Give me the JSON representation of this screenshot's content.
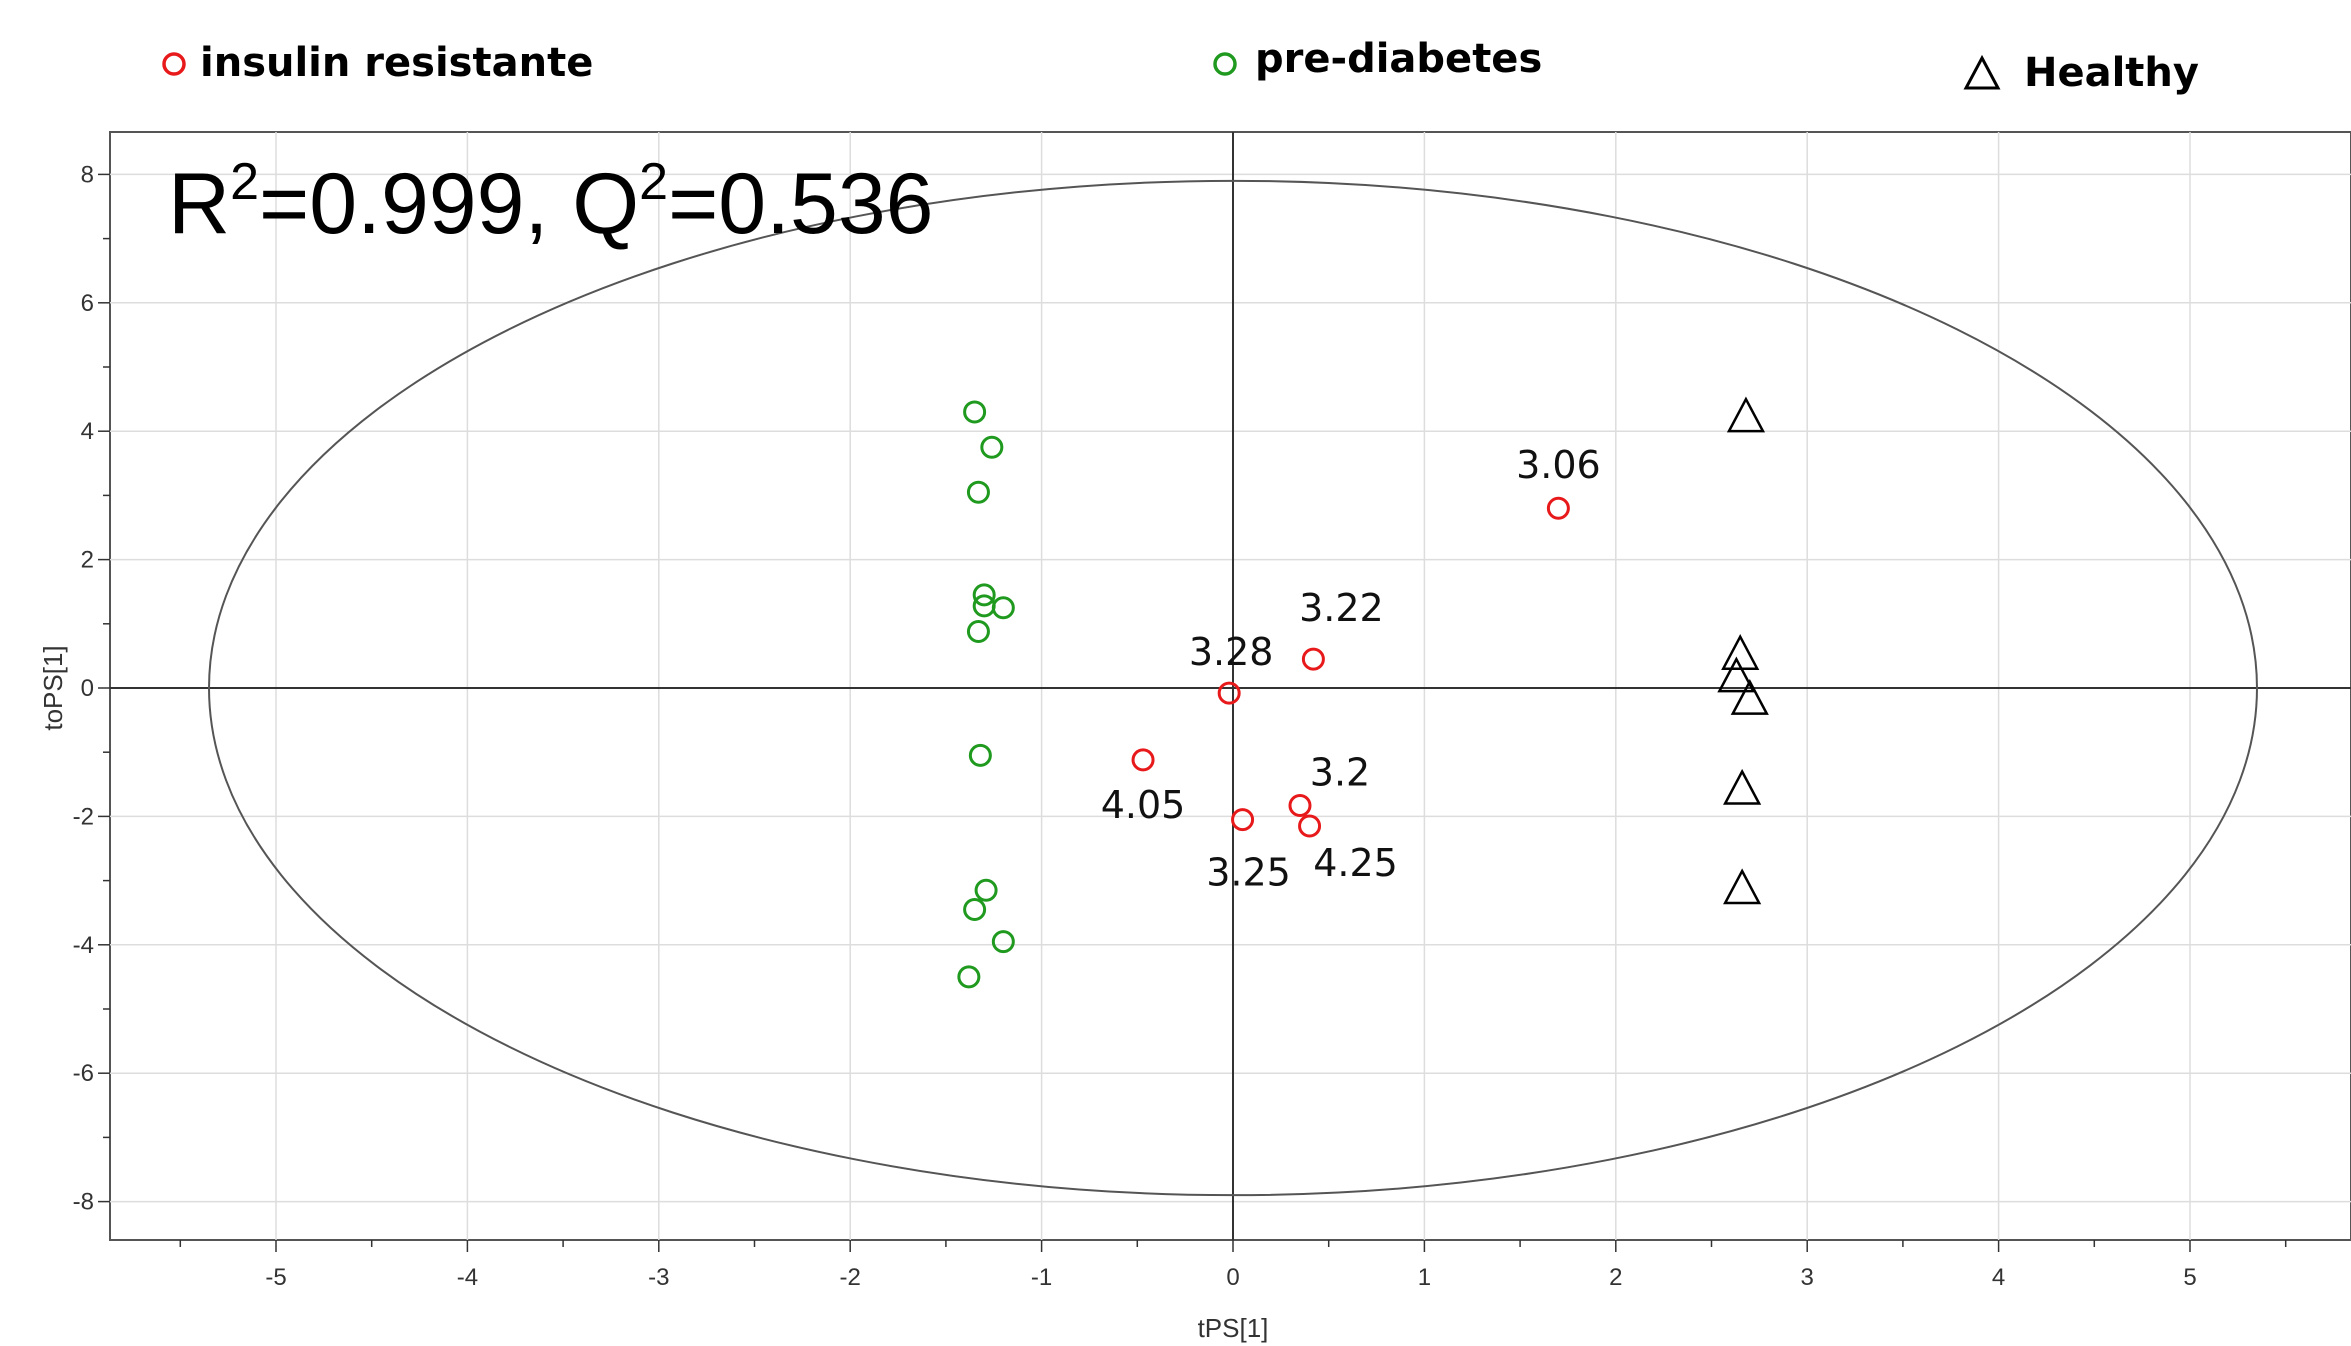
{
  "legend": {
    "insulin": "insulin resistante",
    "prediabetes": "pre-diabetes",
    "healthy": "Healthy"
  },
  "stats_prefix_r": "R",
  "stats_sup_r": "2",
  "stats_mid": "=0.999, Q",
  "stats_sup_q": "2",
  "stats_suffix": "=0.536",
  "colors": {
    "insulin": "#e8191a",
    "prediabetes": "#1f9a1f",
    "healthy": "#000000",
    "ellipse": "#555555",
    "grid": "#dddddd",
    "axis": "#333333"
  },
  "chart_data": {
    "type": "scatter",
    "xlabel": "tPS[1]",
    "ylabel": "toPS[1]",
    "xlim": [
      -5.8,
      5.9
    ],
    "ylim": [
      -8.6,
      8.8
    ],
    "xticks": [
      -5,
      -4,
      -3,
      -2,
      -1,
      0,
      1,
      2,
      3,
      4,
      5
    ],
    "yticks": [
      -8,
      -6,
      -4,
      -2,
      0,
      2,
      4,
      6,
      8
    ],
    "grid": true,
    "legend_position": "top",
    "ellipse": {
      "rx": 5.35,
      "ry": 7.9
    },
    "series": [
      {
        "name": "insulin resistante",
        "marker": "circle",
        "points": [
          {
            "x": 1.7,
            "y": 2.8,
            "label": "3.06"
          },
          {
            "x": 0.42,
            "y": 0.45,
            "label": "3.22"
          },
          {
            "x": -0.02,
            "y": -0.08,
            "label": "3.28"
          },
          {
            "x": -0.47,
            "y": -1.12,
            "label": "4.05"
          },
          {
            "x": 0.35,
            "y": -1.83,
            "label": "3.2"
          },
          {
            "x": 0.4,
            "y": -2.15,
            "label": "4.25"
          },
          {
            "x": 0.05,
            "y": -2.05,
            "label": "3.25"
          }
        ]
      },
      {
        "name": "pre-diabetes",
        "marker": "circle",
        "points": [
          {
            "x": -1.35,
            "y": 4.3
          },
          {
            "x": -1.26,
            "y": 3.75
          },
          {
            "x": -1.33,
            "y": 3.05
          },
          {
            "x": -1.3,
            "y": 1.45
          },
          {
            "x": -1.3,
            "y": 1.28
          },
          {
            "x": -1.2,
            "y": 1.25
          },
          {
            "x": -1.33,
            "y": 0.88
          },
          {
            "x": -1.32,
            "y": -1.05
          },
          {
            "x": -1.29,
            "y": -3.15
          },
          {
            "x": -1.35,
            "y": -3.45
          },
          {
            "x": -1.2,
            "y": -3.95
          },
          {
            "x": -1.38,
            "y": -4.5
          }
        ]
      },
      {
        "name": "Healthy",
        "marker": "triangle",
        "points": [
          {
            "x": 2.68,
            "y": 4.25
          },
          {
            "x": 2.65,
            "y": 0.55
          },
          {
            "x": 2.63,
            "y": 0.2
          },
          {
            "x": 2.7,
            "y": -0.15
          },
          {
            "x": 2.66,
            "y": -1.55
          },
          {
            "x": 2.66,
            "y": -3.1
          }
        ]
      }
    ]
  }
}
